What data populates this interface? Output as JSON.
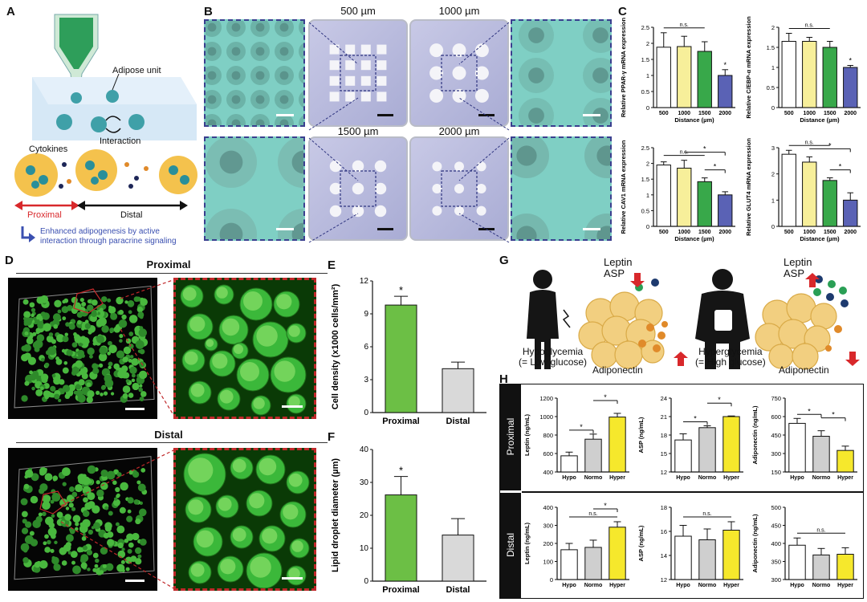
{
  "panels": {
    "A": "A",
    "B": "B",
    "C": "C",
    "D": "D",
    "E": "E",
    "F": "F",
    "G": "G",
    "H": "H"
  },
  "panelA": {
    "adipose_unit": "Adipose unit",
    "interaction": "Interaction",
    "cytokines": "Cytokines",
    "proximal": "Proximal",
    "distal": "Distal",
    "note_line1": "Enhanced adipogenesis by active",
    "note_line2": "interaction through paracrine signaling",
    "colors": {
      "nozzle": "#2e9e5a",
      "tissue": "#3fa0a8",
      "proximal": "#d8282b",
      "arrow": "#3a4fb0"
    }
  },
  "panelB": {
    "labels": [
      "500 µm",
      "1000 µm",
      "1500 µm",
      "2000 µm"
    ]
  },
  "panelD": {
    "proximal": "Proximal",
    "distal": "Distal"
  },
  "panelG": {
    "leptin": "Leptin",
    "asp": "ASP",
    "adiponectin": "Adiponectin",
    "hypo_line1": "Hypoglycemia",
    "hypo_line2": "(= Low glucose)",
    "hyper_line1": "Hyperglycemia",
    "hyper_line2": "(= High glucose)"
  },
  "panelH": {
    "row_proximal": "Proximal",
    "row_distal": "Distal"
  },
  "chart_data": [
    {
      "id": "C1",
      "type": "bar",
      "categories": [
        "500",
        "1000",
        "1500",
        "2000"
      ],
      "values": [
        1.88,
        1.9,
        1.75,
        1.0
      ],
      "errors": [
        0.45,
        0.32,
        0.3,
        0.18
      ],
      "ylabel": "Relative PPAR-γ mRNA expression",
      "xlabel": "Distance (µm)",
      "ylim": [
        0,
        2.5
      ],
      "yticks": [
        0,
        0.5,
        1.0,
        1.5,
        2.0,
        2.5
      ],
      "colors": [
        "#ffffff",
        "#f7ef9a",
        "#38a84a",
        "#5a62b5"
      ],
      "annotations": {
        "bracket": "n.s.",
        "star_on": [
          3
        ]
      }
    },
    {
      "id": "C2",
      "type": "bar",
      "categories": [
        "500",
        "1000",
        "1500",
        "2000"
      ],
      "values": [
        1.65,
        1.65,
        1.5,
        1.0
      ],
      "errors": [
        0.2,
        0.1,
        0.15,
        0.05
      ],
      "ylabel": "Relative C/EBP-α mRNA expression",
      "xlabel": "Distance (µm)",
      "ylim": [
        0,
        2.0
      ],
      "yticks": [
        0,
        0.5,
        1.0,
        1.5,
        2.0
      ],
      "colors": [
        "#ffffff",
        "#f7ef9a",
        "#38a84a",
        "#5a62b5"
      ],
      "annotations": {
        "bracket": "n.s.",
        "star_on": [
          3
        ]
      }
    },
    {
      "id": "C3",
      "type": "bar",
      "categories": [
        "500",
        "1000",
        "1500",
        "2000"
      ],
      "values": [
        1.95,
        1.85,
        1.42,
        1.0
      ],
      "errors": [
        0.1,
        0.25,
        0.12,
        0.1
      ],
      "ylabel": "Relative CAV1 mRNA expression",
      "xlabel": "Distance (µm)",
      "ylim": [
        0,
        2.5
      ],
      "yticks": [
        0,
        0.5,
        1.0,
        1.5,
        2.0,
        2.5
      ],
      "colors": [
        "#ffffff",
        "#f7ef9a",
        "#38a84a",
        "#5a62b5"
      ],
      "annotations": {
        "bracket": "n.s.",
        "stars": [
          "*",
          "*"
        ]
      }
    },
    {
      "id": "C4",
      "type": "bar",
      "categories": [
        "500",
        "1000",
        "1500",
        "2000"
      ],
      "values": [
        2.75,
        2.45,
        1.75,
        1.0
      ],
      "errors": [
        0.15,
        0.2,
        0.1,
        0.28
      ],
      "ylabel": "Relative GLUT4 mRNA expression",
      "xlabel": "Distance (µm)",
      "ylim": [
        0,
        3
      ],
      "yticks": [
        0,
        1,
        2,
        3
      ],
      "colors": [
        "#ffffff",
        "#f7ef9a",
        "#38a84a",
        "#5a62b5"
      ],
      "annotations": {
        "bracket": "n.s.",
        "stars": [
          "*",
          "*"
        ]
      }
    },
    {
      "id": "E",
      "type": "bar",
      "categories": [
        "Proximal",
        "Distal"
      ],
      "values": [
        9.8,
        4.0
      ],
      "errors": [
        0.8,
        0.6
      ],
      "ylabel": "Cell density (x1000 cells/mm²)",
      "ylim": [
        0,
        12
      ],
      "yticks": [
        0,
        3,
        6,
        9,
        12
      ],
      "colors": [
        "#6cbf45",
        "#d9d9d9"
      ],
      "annotations": {
        "star_on": [
          0
        ]
      }
    },
    {
      "id": "F",
      "type": "bar",
      "categories": [
        "Proximal",
        "Distal"
      ],
      "values": [
        26.2,
        14.0
      ],
      "errors": [
        5.6,
        5.0
      ],
      "ylabel": "Lipid droplet diameter (µm)",
      "ylim": [
        0,
        40
      ],
      "yticks": [
        0,
        10,
        20,
        30,
        40
      ],
      "colors": [
        "#6cbf45",
        "#d9d9d9"
      ],
      "annotations": {
        "star_on": [
          0
        ]
      }
    },
    {
      "id": "H1",
      "type": "bar",
      "categories": [
        "Hypo",
        "Normo",
        "Hyper"
      ],
      "values": [
        575,
        755,
        995
      ],
      "errors": [
        40,
        55,
        40
      ],
      "ylabel": "Leptin (ng/mL)",
      "ylim": [
        400,
        1200
      ],
      "yticks": [
        400,
        600,
        800,
        1000,
        1200
      ],
      "colors": [
        "#ffffff",
        "#cfcfcf",
        "#f6e82c"
      ],
      "annotations": {
        "stars": [
          "*",
          "*"
        ]
      }
    },
    {
      "id": "H2",
      "type": "bar",
      "categories": [
        "Hypo",
        "Normo",
        "Hyper"
      ],
      "values": [
        17.2,
        19.2,
        21.0
      ],
      "errors": [
        1.0,
        0.3,
        0.1
      ],
      "ylabel": "ASP (ng/mL)",
      "ylim": [
        12,
        24
      ],
      "yticks": [
        12,
        15,
        18,
        21,
        24
      ],
      "colors": [
        "#ffffff",
        "#cfcfcf",
        "#f6e82c"
      ],
      "annotations": {
        "stars": [
          "*",
          "*"
        ]
      }
    },
    {
      "id": "H3",
      "type": "bar",
      "categories": [
        "Hypo",
        "Normo",
        "Hyper"
      ],
      "values": [
        545,
        440,
        325
      ],
      "errors": [
        40,
        45,
        35
      ],
      "ylabel": "Adiponectin (ng/mL)",
      "ylim": [
        150,
        750
      ],
      "yticks": [
        150,
        300,
        450,
        600,
        750
      ],
      "colors": [
        "#ffffff",
        "#cfcfcf",
        "#f6e82c"
      ],
      "annotations": {
        "stars": [
          "*",
          "*"
        ]
      }
    },
    {
      "id": "H4",
      "type": "bar",
      "categories": [
        "Hypo",
        "Normo",
        "Hyper"
      ],
      "values": [
        165,
        178,
        290
      ],
      "errors": [
        35,
        40,
        30
      ],
      "ylabel": "Leptin (ng/mL)",
      "ylim": [
        0,
        400
      ],
      "yticks": [
        0,
        100,
        200,
        300,
        400
      ],
      "colors": [
        "#ffffff",
        "#cfcfcf",
        "#f6e82c"
      ],
      "annotations": {
        "bracket": "n.s.",
        "stars": [
          "*"
        ]
      }
    },
    {
      "id": "H5",
      "type": "bar",
      "categories": [
        "Hypo",
        "Normo",
        "Hyper"
      ],
      "values": [
        15.6,
        15.3,
        16.1
      ],
      "errors": [
        0.9,
        0.9,
        0.7
      ],
      "ylabel": "ASP (ng/mL)",
      "ylim": [
        12,
        18
      ],
      "yticks": [
        12,
        14,
        16,
        18
      ],
      "colors": [
        "#ffffff",
        "#cfcfcf",
        "#f6e82c"
      ],
      "annotations": {
        "bracket": "n.s."
      }
    },
    {
      "id": "H6",
      "type": "bar",
      "categories": [
        "Hypo",
        "Normo",
        "Hyper"
      ],
      "values": [
        395,
        368,
        370
      ],
      "errors": [
        20,
        18,
        18
      ],
      "ylabel": "Adiponectin (ng/mL)",
      "ylim": [
        300,
        500
      ],
      "yticks": [
        300,
        350,
        400,
        450,
        500
      ],
      "colors": [
        "#ffffff",
        "#cfcfcf",
        "#f6e82c"
      ],
      "annotations": {
        "bracket": "n.s."
      }
    }
  ]
}
